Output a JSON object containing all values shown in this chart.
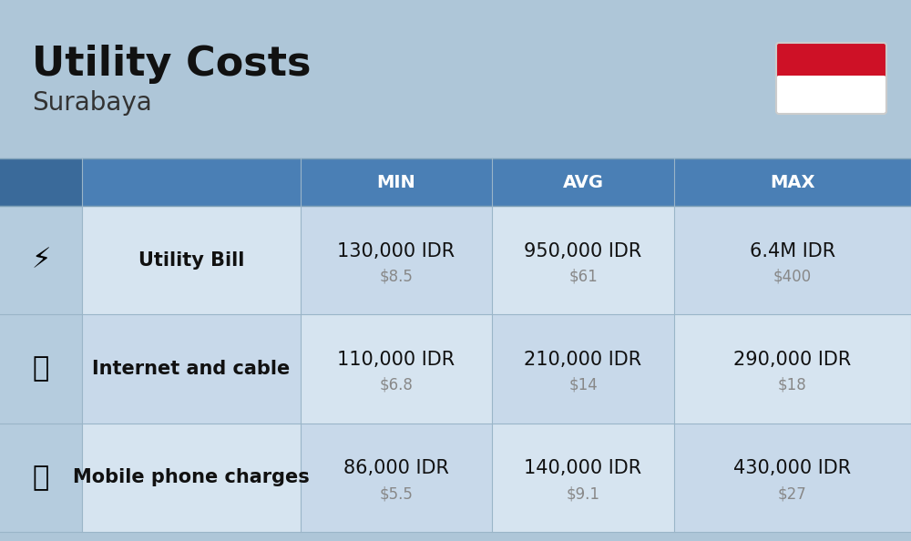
{
  "title": "Utility Costs",
  "subtitle": "Surabaya",
  "background_color": "#aec6d8",
  "header_bg_color": "#4a7fb5",
  "header_text_color": "#ffffff",
  "row_bg_colors": [
    "#d6e4f0",
    "#c8d9ea"
  ],
  "icon_col_bg": "#b8cfe0",
  "label_col_bg": "#c8d9ea",
  "header_labels": [
    "MIN",
    "AVG",
    "MAX"
  ],
  "rows": [
    {
      "label": "Utility Bill",
      "min_idr": "130,000 IDR",
      "min_usd": "$8.5",
      "avg_idr": "950,000 IDR",
      "avg_usd": "$61",
      "max_idr": "6.4M IDR",
      "max_usd": "$400"
    },
    {
      "label": "Internet and cable",
      "min_idr": "110,000 IDR",
      "min_usd": "$6.8",
      "avg_idr": "210,000 IDR",
      "avg_usd": "$14",
      "max_idr": "290,000 IDR",
      "max_usd": "$18"
    },
    {
      "label": "Mobile phone charges",
      "min_idr": "86,000 IDR",
      "min_usd": "$5.5",
      "avg_idr": "140,000 IDR",
      "avg_usd": "$9.1",
      "max_idr": "430,000 IDR",
      "max_usd": "$27"
    }
  ],
  "flag_red": "#ce1126",
  "flag_white": "#ffffff",
  "idr_fontsize": 15,
  "usd_fontsize": 12,
  "label_fontsize": 15,
  "header_fontsize": 14,
  "title_fontsize": 32,
  "subtitle_fontsize": 20,
  "usd_color": "#888888",
  "label_text_color": "#111111"
}
